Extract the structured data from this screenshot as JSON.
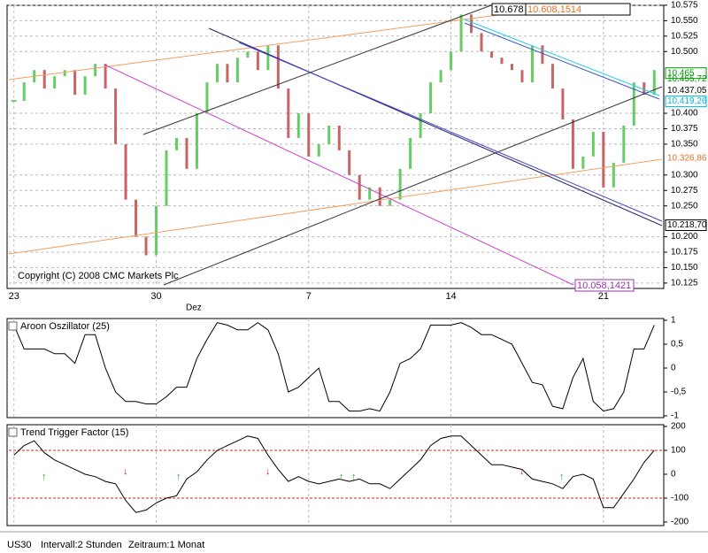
{
  "chart_data": [
    {
      "type": "price",
      "title": null,
      "copyright": "Copyright (C) 2008 CMC Markets Plc",
      "x_sublabel": "Dez",
      "categories": [
        "23",
        null,
        null,
        null,
        null,
        null,
        null,
        null,
        null,
        null,
        null,
        null,
        null,
        null,
        "30",
        null,
        null,
        null,
        null,
        null,
        null,
        null,
        null,
        null,
        null,
        null,
        null,
        null,
        null,
        "7",
        null,
        null,
        null,
        null,
        null,
        null,
        null,
        null,
        null,
        null,
        null,
        null,
        null,
        "14",
        null,
        null,
        null,
        null,
        null,
        null,
        null,
        null,
        null,
        null,
        null,
        null,
        null,
        null,
        "21",
        null,
        null,
        null,
        null,
        null
      ],
      "values": [
        10.42,
        10.45,
        10.47,
        10.44,
        10.46,
        10.47,
        10.43,
        10.46,
        10.48,
        10.44,
        10.35,
        10.26,
        10.2,
        10.17,
        10.25,
        10.34,
        10.36,
        10.31,
        10.4,
        10.45,
        10.48,
        10.45,
        10.49,
        10.5,
        10.47,
        10.51,
        10.44,
        10.36,
        10.4,
        10.33,
        10.35,
        10.38,
        10.34,
        10.3,
        10.26,
        10.28,
        10.25,
        10.26,
        10.31,
        10.36,
        10.4,
        10.45,
        10.47,
        10.5,
        10.56,
        10.53,
        10.5,
        10.49,
        10.48,
        10.47,
        10.45,
        10.51,
        10.48,
        10.44,
        10.39,
        10.31,
        10.33,
        10.37,
        10.28,
        10.32,
        10.38,
        10.45,
        10.43,
        10.47
      ],
      "up_color": "#66cc66",
      "down_color": "#c86464",
      "ylim": [
        10.122,
        10.572
      ],
      "yticks": [
        10.125,
        {
          "value": 10.15,
          "label": "10.150"
        },
        10.175,
        {
          "value": 10.2,
          "label": "10.200"
        },
        {
          "value": 10.25,
          "label": "10.250"
        },
        10.275,
        {
          "value": 10.3,
          "label": "10.300"
        },
        {
          "value": 10.35,
          "label": "10.350"
        },
        10.375,
        {
          "value": 10.4,
          "label": "10.400"
        },
        {
          "value": 10.5,
          "label": "10.500"
        },
        10.525,
        {
          "value": 10.55,
          "label": "10.550"
        },
        10.575
      ],
      "grid": true,
      "annotations": [
        {
          "label": "10.465",
          "value": 10.465,
          "color": "#009900",
          "boxed": true
        },
        {
          "label": "10.455,72",
          "value": 10.45572,
          "color": "#009900",
          "boxed": false
        },
        {
          "label": "10.437,05",
          "value": 10.43705,
          "color": "#000000",
          "boxed": false
        },
        {
          "label": "10.419,26",
          "value": 10.41926,
          "color": "#00bbdd",
          "boxed": true
        },
        {
          "label": "10.326,86",
          "value": 10.32686,
          "color": "#e07020",
          "boxed": false
        },
        {
          "label": "10.218,70",
          "value": 10.2187,
          "color": "#000000",
          "boxed": true
        }
      ],
      "top_labels": [
        "10.678",
        "10.608,1514"
      ],
      "bottom_label": "10.058,1421"
    },
    {
      "type": "line",
      "title": "Aroon Oszillator (25)",
      "color": "#000000",
      "values": [
        0.9,
        0.4,
        0.4,
        0.4,
        0.3,
        0.3,
        0.1,
        0.7,
        0.7,
        0,
        -0.5,
        -0.7,
        -0.7,
        -0.75,
        -0.75,
        -0.6,
        -0.4,
        -0.4,
        0.2,
        0.6,
        0.95,
        0.9,
        0.8,
        0.8,
        0.95,
        0.8,
        0.3,
        -0.5,
        -0.4,
        -0.2,
        0,
        -0.7,
        -0.7,
        -0.9,
        -0.9,
        -0.85,
        -0.9,
        -0.5,
        0.1,
        0.2,
        0.4,
        0.9,
        0.9,
        0.9,
        0.95,
        0.85,
        0.7,
        0.7,
        0.6,
        0.5,
        0.1,
        -0.3,
        -0.35,
        -0.8,
        -0.85,
        -0.2,
        0.2,
        -0.7,
        -0.9,
        -0.85,
        -0.5,
        0.4,
        0.4,
        0.9
      ],
      "ylim": [
        -1,
        1
      ],
      "yticks": [
        1,
        {
          "value": 0.5,
          "label": "0,5"
        },
        0,
        {
          "value": -0.5,
          "label": "-0,5"
        },
        -1
      ]
    },
    {
      "type": "line",
      "title": "Trend Trigger Factor (15)",
      "color": "#000000",
      "levels": [
        100,
        -100
      ],
      "level_color": "#dd2222",
      "values": [
        80,
        120,
        140,
        90,
        60,
        40,
        20,
        0,
        -10,
        -30,
        -40,
        -110,
        -160,
        -150,
        -120,
        -100,
        -90,
        -20,
        10,
        60,
        100,
        120,
        140,
        160,
        150,
        80,
        20,
        -30,
        -10,
        -30,
        -40,
        -30,
        -20,
        -30,
        -20,
        -40,
        -40,
        -60,
        -20,
        20,
        60,
        120,
        150,
        160,
        160,
        120,
        80,
        40,
        40,
        30,
        20,
        -20,
        -30,
        -40,
        -60,
        -10,
        0,
        -20,
        -140,
        -140,
        -80,
        -20,
        50,
        100
      ],
      "ylim": [
        -200,
        200
      ],
      "yticks": [
        200,
        100,
        0,
        -100,
        -200
      ]
    }
  ],
  "footer": {
    "symbol": "US30",
    "interval": "Intervall:2 Stunden",
    "period": "Zeitraum:1 Monat"
  }
}
